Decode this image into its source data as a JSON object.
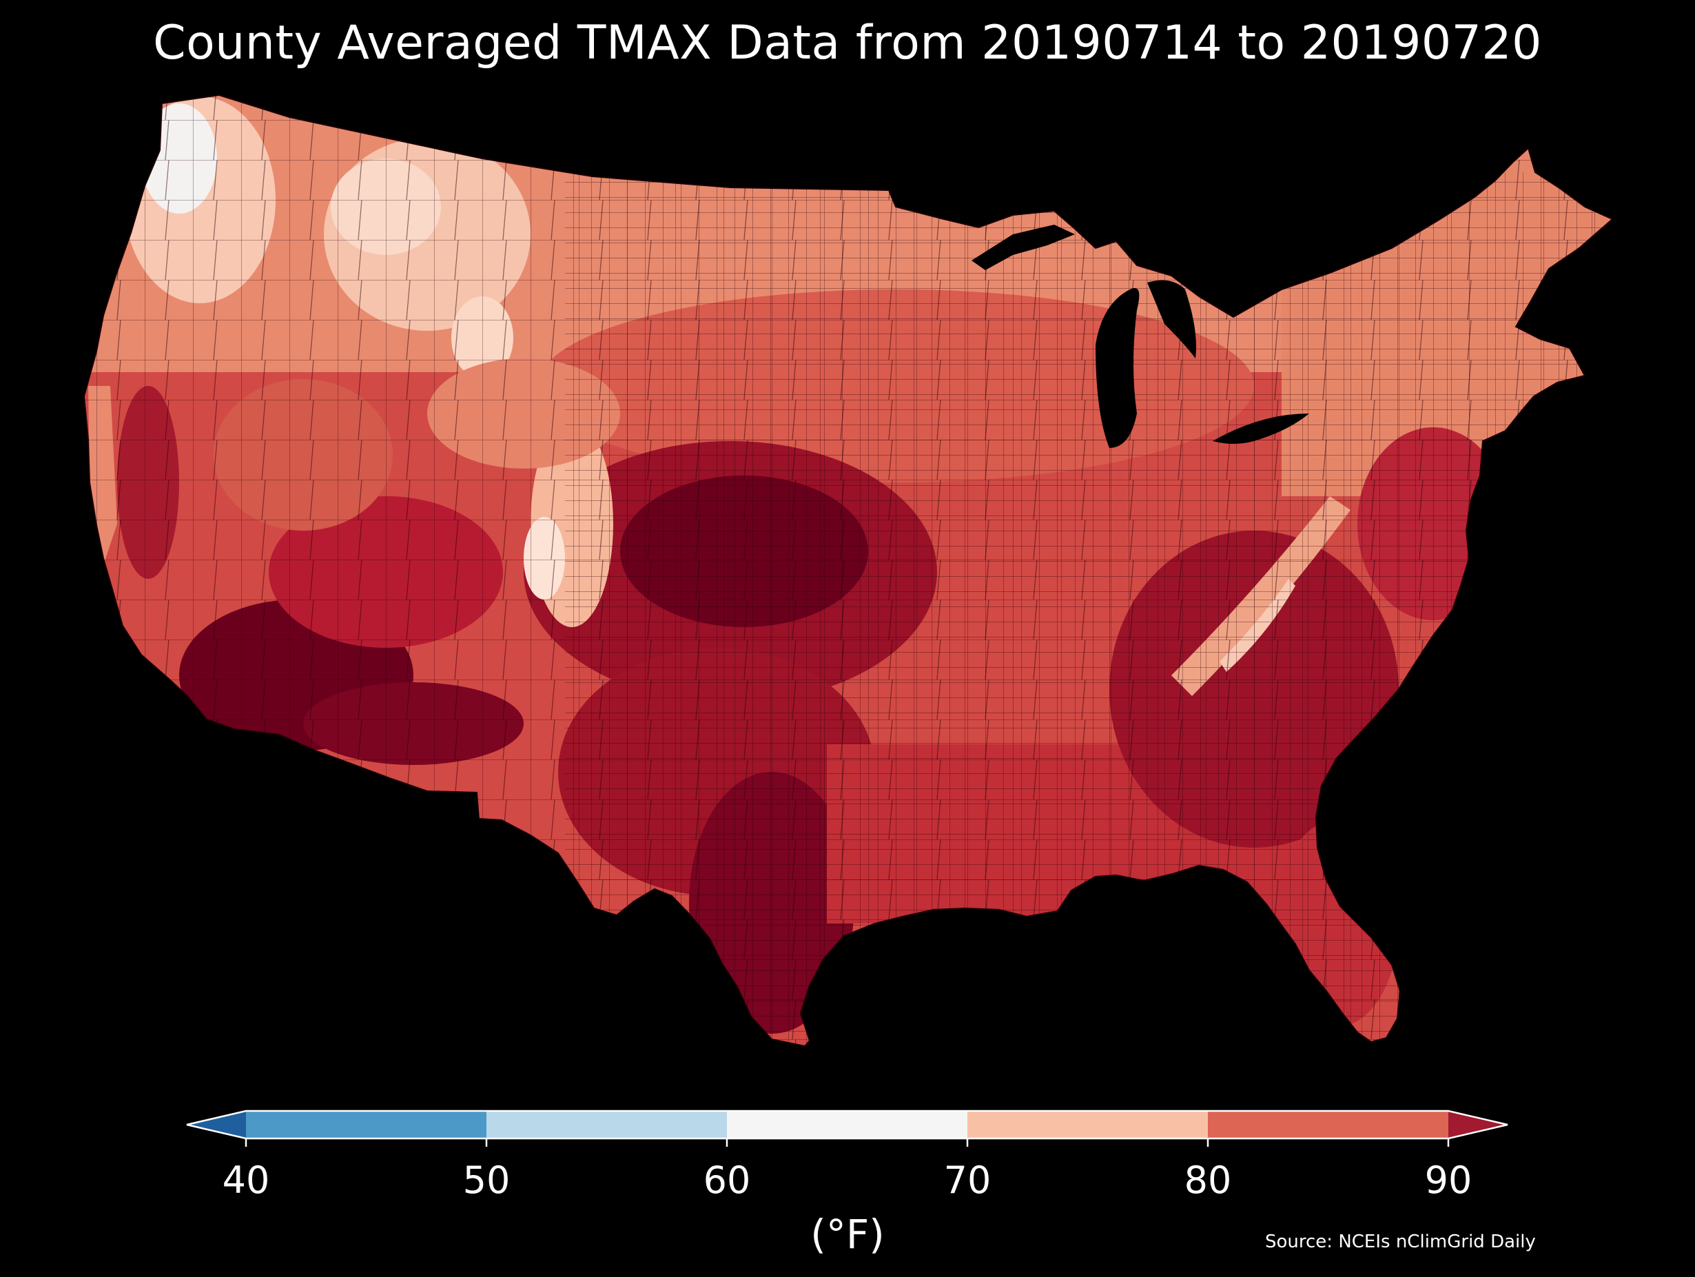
{
  "title": "County Averaged TMAX Data from 20190714 to 20190720",
  "colorbar": {
    "ticks": [
      "40",
      "50",
      "60",
      "70",
      "80",
      "90"
    ],
    "units": "(°F)",
    "bins": [
      {
        "range": [
          30,
          40
        ],
        "color": "#1f5f9e"
      },
      {
        "range": [
          40,
          50
        ],
        "color": "#4c99c8"
      },
      {
        "range": [
          50,
          60
        ],
        "color": "#b9d9ea"
      },
      {
        "range": [
          60,
          70
        ],
        "color": "#f5f5f5"
      },
      {
        "range": [
          70,
          80
        ],
        "color": "#f8c1a6"
      },
      {
        "range": [
          80,
          90
        ],
        "color": "#dd6553"
      },
      {
        "range": [
          90,
          100
        ],
        "color": "#a11a30"
      }
    ]
  },
  "source": "Source: NCEIs nClimGrid Daily",
  "map_colors": {
    "cool_white": "#f2f2f2",
    "pale": "#fbdccc",
    "light_salmon": "#f4a788",
    "salmon": "#e88a6e",
    "coral": "#dd6653",
    "red": "#c9353a",
    "crimson": "#ad1d2e",
    "dark_red": "#8a0c25",
    "deep_maroon": "#6b001d"
  }
}
